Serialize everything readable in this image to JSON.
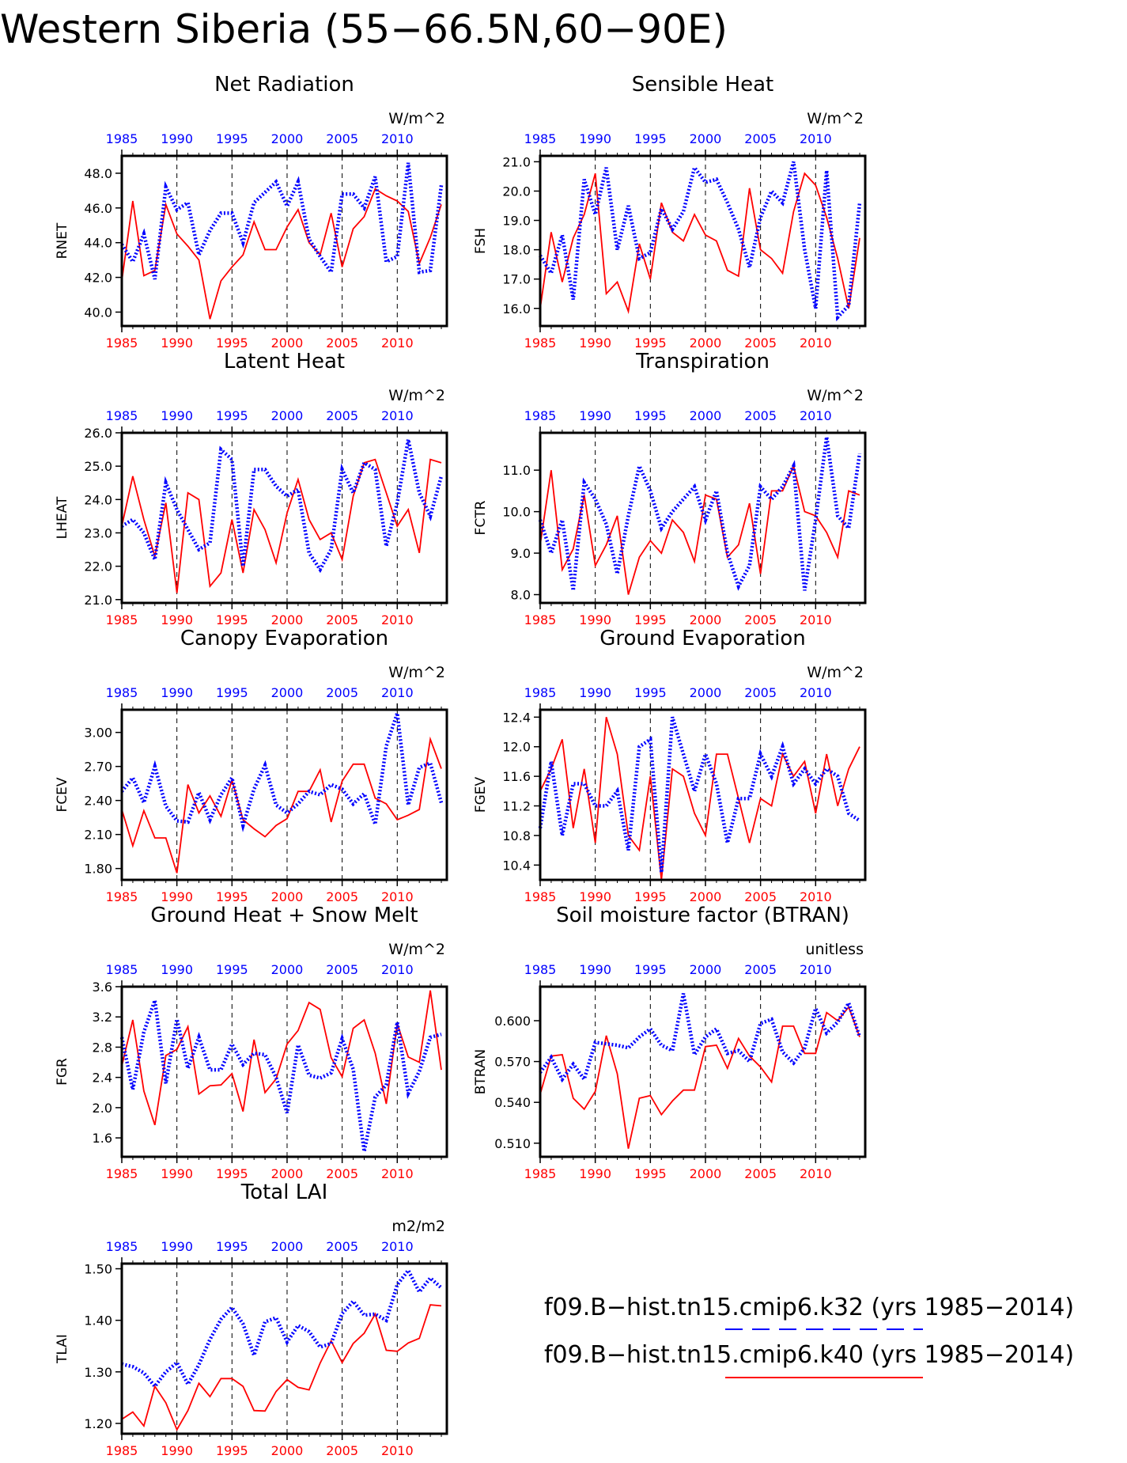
{
  "title": "Western Siberia (55−66.5N,60−90E)",
  "legend": [
    {
      "name": "f09.B−hist.tn15.cmip6.k32 (yrs 1985−2014)",
      "color": "#0000ff",
      "style": "dashed-dotted"
    },
    {
      "name": "f09.B−hist.tn15.cmip6.k40 (yrs 1985−2014)",
      "color": "#ff0000",
      "style": "solid"
    }
  ],
  "colors": {
    "k32": "#0000ff",
    "k40": "#ff0000",
    "grid": "#000000"
  },
  "chart_data": [
    {
      "type": "line",
      "title": "Net Radiation",
      "units": "W/m^2",
      "ylabel": "RNET",
      "x": [
        1985,
        1986,
        1987,
        1988,
        1989,
        1990,
        1991,
        1992,
        1993,
        1994,
        1995,
        1996,
        1997,
        1998,
        1999,
        2000,
        2001,
        2002,
        2003,
        2004,
        2005,
        2006,
        2007,
        2008,
        2009,
        2010,
        2011,
        2012,
        2013,
        2014
      ],
      "xlim": [
        1985,
        2014.5
      ],
      "xticks": [
        1985,
        1990,
        1995,
        2000,
        2005,
        2010
      ],
      "ylim": [
        39.2,
        49.0
      ],
      "yticks": [
        "40.0",
        "42.0",
        "44.0",
        "46.0",
        "48.0"
      ],
      "series": [
        {
          "name": "k32",
          "values": [
            43.9,
            42.9,
            44.5,
            41.9,
            47.2,
            45.9,
            46.3,
            43.3,
            44.7,
            45.7,
            45.7,
            44.0,
            46.3,
            46.9,
            47.5,
            46.1,
            47.5,
            44.2,
            43.2,
            42.3,
            46.8,
            46.8,
            46.0,
            47.8,
            42.9,
            43.2,
            48.6,
            42.3,
            42.4,
            47.3
          ]
        },
        {
          "name": "k40",
          "values": [
            41.8,
            46.4,
            42.1,
            42.4,
            46.2,
            44.5,
            43.8,
            43.0,
            39.6,
            41.8,
            42.6,
            43.3,
            45.2,
            43.6,
            43.6,
            44.9,
            45.9,
            44.0,
            43.3,
            45.7,
            42.6,
            44.8,
            45.5,
            47.1,
            46.7,
            46.4,
            45.8,
            42.8,
            44.3,
            46.2
          ]
        }
      ]
    },
    {
      "type": "line",
      "title": "Sensible Heat",
      "units": "W/m^2",
      "ylabel": "FSH",
      "x": [
        1985,
        1986,
        1987,
        1988,
        1989,
        1990,
        1991,
        1992,
        1993,
        1994,
        1995,
        1996,
        1997,
        1998,
        1999,
        2000,
        2001,
        2002,
        2003,
        2004,
        2005,
        2006,
        2007,
        2008,
        2009,
        2010,
        2011,
        2012,
        2013,
        2014
      ],
      "xlim": [
        1985,
        2014.5
      ],
      "xticks": [
        1985,
        1990,
        1995,
        2000,
        2005,
        2010
      ],
      "ylim": [
        15.4,
        21.2
      ],
      "yticks": [
        "16.0",
        "17.0",
        "18.0",
        "19.0",
        "20.0",
        "21.0"
      ],
      "series": [
        {
          "name": "k32",
          "values": [
            17.8,
            17.2,
            18.5,
            16.3,
            20.4,
            19.2,
            20.8,
            18.0,
            19.5,
            17.7,
            17.9,
            19.4,
            18.7,
            19.3,
            20.8,
            20.3,
            20.4,
            19.6,
            18.7,
            17.4,
            19.1,
            20.0,
            19.6,
            21.0,
            18.0,
            16.0,
            20.7,
            15.7,
            16.1,
            19.6
          ]
        },
        {
          "name": "k40",
          "values": [
            16.0,
            18.6,
            16.9,
            18.4,
            19.2,
            20.6,
            16.5,
            16.9,
            15.9,
            18.2,
            17.0,
            19.6,
            18.6,
            18.3,
            19.2,
            18.5,
            18.3,
            17.3,
            17.1,
            20.1,
            18.0,
            17.7,
            17.2,
            19.3,
            20.6,
            20.2,
            19.1,
            17.7,
            16.0,
            18.4
          ]
        }
      ]
    },
    {
      "type": "line",
      "title": "Latent Heat",
      "units": "W/m^2",
      "ylabel": "LHEAT",
      "x": [
        1985,
        1986,
        1987,
        1988,
        1989,
        1990,
        1991,
        1992,
        1993,
        1994,
        1995,
        1996,
        1997,
        1998,
        1999,
        2000,
        2001,
        2002,
        2003,
        2004,
        2005,
        2006,
        2007,
        2008,
        2009,
        2010,
        2011,
        2012,
        2013,
        2014
      ],
      "xlim": [
        1985,
        2014.5
      ],
      "xticks": [
        1985,
        1990,
        1995,
        2000,
        2005,
        2010
      ],
      "ylim": [
        20.9,
        26.0
      ],
      "yticks": [
        "21.0",
        "22.0",
        "23.0",
        "24.0",
        "25.0",
        "26.0"
      ],
      "series": [
        {
          "name": "k32",
          "values": [
            23.2,
            23.4,
            23.0,
            22.2,
            24.5,
            23.7,
            23.1,
            22.5,
            22.7,
            25.5,
            25.2,
            22.0,
            24.9,
            24.9,
            24.4,
            24.1,
            24.3,
            22.4,
            21.9,
            22.5,
            24.9,
            24.2,
            25.1,
            24.9,
            22.6,
            23.9,
            25.8,
            24.2,
            23.5,
            24.7
          ]
        },
        {
          "name": "k40",
          "values": [
            23.2,
            24.7,
            23.4,
            22.3,
            23.9,
            21.2,
            24.2,
            24.0,
            21.4,
            21.8,
            23.4,
            21.8,
            23.7,
            23.1,
            22.1,
            23.6,
            24.6,
            23.4,
            22.8,
            23.0,
            22.2,
            24.1,
            25.1,
            25.2,
            24.2,
            23.2,
            23.7,
            22.4,
            25.2,
            25.1
          ]
        }
      ]
    },
    {
      "type": "line",
      "title": "Transpiration",
      "units": "W/m^2",
      "ylabel": "FCTR",
      "x": [
        1985,
        1986,
        1987,
        1988,
        1989,
        1990,
        1991,
        1992,
        1993,
        1994,
        1995,
        1996,
        1997,
        1998,
        1999,
        2000,
        2001,
        2002,
        2003,
        2004,
        2005,
        2006,
        2007,
        2008,
        2009,
        2010,
        2011,
        2012,
        2013,
        2014
      ],
      "xlim": [
        1985,
        2014.5
      ],
      "xticks": [
        1985,
        1990,
        1995,
        2000,
        2005,
        2010
      ],
      "ylim": [
        7.8,
        11.9
      ],
      "yticks": [
        "8.0",
        "9.0",
        "10.0",
        "11.0"
      ],
      "series": [
        {
          "name": "k32",
          "values": [
            9.8,
            9.0,
            9.8,
            8.1,
            10.7,
            10.3,
            9.7,
            8.5,
            9.9,
            11.1,
            10.5,
            9.6,
            10.0,
            10.3,
            10.6,
            9.8,
            10.5,
            9.0,
            8.2,
            8.7,
            10.6,
            10.3,
            10.6,
            11.1,
            8.1,
            9.8,
            11.8,
            9.9,
            9.6,
            11.4
          ]
        },
        {
          "name": "k40",
          "values": [
            9.2,
            11.0,
            8.6,
            9.1,
            10.4,
            8.7,
            9.2,
            9.9,
            8.0,
            8.9,
            9.3,
            9.0,
            9.8,
            9.5,
            8.8,
            10.4,
            10.3,
            8.9,
            9.2,
            10.2,
            8.5,
            10.5,
            10.5,
            11.1,
            10.0,
            9.9,
            9.5,
            8.9,
            10.5,
            10.4
          ]
        }
      ]
    },
    {
      "type": "line",
      "title": "Canopy Evaporation",
      "units": "W/m^2",
      "ylabel": "FCEV",
      "x": [
        1985,
        1986,
        1987,
        1988,
        1989,
        1990,
        1991,
        1992,
        1993,
        1994,
        1995,
        1996,
        1997,
        1998,
        1999,
        2000,
        2001,
        2002,
        2003,
        2004,
        2005,
        2006,
        2007,
        2008,
        2009,
        2010,
        2011,
        2012,
        2013,
        2014
      ],
      "xlim": [
        1985,
        2014.5
      ],
      "xticks": [
        1985,
        1990,
        1995,
        2000,
        2005,
        2010
      ],
      "ylim": [
        1.7,
        3.2
      ],
      "yticks": [
        "1.80",
        "2.10",
        "2.40",
        "2.70",
        "3.00"
      ],
      "series": [
        {
          "name": "k32",
          "values": [
            2.48,
            2.6,
            2.38,
            2.7,
            2.35,
            2.22,
            2.21,
            2.47,
            2.23,
            2.45,
            2.6,
            2.18,
            2.5,
            2.71,
            2.36,
            2.29,
            2.37,
            2.48,
            2.45,
            2.54,
            2.5,
            2.37,
            2.46,
            2.19,
            2.88,
            3.17,
            2.36,
            2.69,
            2.73,
            2.38
          ]
        },
        {
          "name": "k40",
          "values": [
            2.32,
            2.0,
            2.31,
            2.07,
            2.07,
            1.76,
            2.54,
            2.29,
            2.44,
            2.26,
            2.58,
            2.23,
            2.15,
            2.08,
            2.18,
            2.24,
            2.48,
            2.48,
            2.67,
            2.21,
            2.57,
            2.72,
            2.72,
            2.42,
            2.37,
            2.23,
            2.27,
            2.32,
            2.94,
            2.68
          ]
        }
      ]
    },
    {
      "type": "line",
      "title": "Ground Evaporation",
      "units": "W/m^2",
      "ylabel": "FGEV",
      "x": [
        1985,
        1986,
        1987,
        1988,
        1989,
        1990,
        1991,
        1992,
        1993,
        1994,
        1995,
        1996,
        1997,
        1998,
        1999,
        2000,
        2001,
        2002,
        2003,
        2004,
        2005,
        2006,
        2007,
        2008,
        2009,
        2010,
        2011,
        2012,
        2013,
        2014
      ],
      "xlim": [
        1985,
        2014.5
      ],
      "xticks": [
        1985,
        1990,
        1995,
        2000,
        2005,
        2010
      ],
      "ylim": [
        10.2,
        12.5
      ],
      "yticks": [
        "10.4",
        "10.8",
        "11.2",
        "11.6",
        "12.0",
        "12.4"
      ],
      "series": [
        {
          "name": "k32",
          "values": [
            10.9,
            11.8,
            10.8,
            11.5,
            11.5,
            11.2,
            11.2,
            11.4,
            10.6,
            12.0,
            12.1,
            10.3,
            12.4,
            11.9,
            11.4,
            11.9,
            11.5,
            10.7,
            11.3,
            11.3,
            11.9,
            11.6,
            12.0,
            11.5,
            11.7,
            11.5,
            11.7,
            11.6,
            11.1,
            11.0
          ]
        },
        {
          "name": "k40",
          "values": [
            11.4,
            11.7,
            12.1,
            10.9,
            11.7,
            10.7,
            12.4,
            11.9,
            10.8,
            10.6,
            11.6,
            10.2,
            11.7,
            11.6,
            11.1,
            10.8,
            11.9,
            11.9,
            11.3,
            10.7,
            11.3,
            11.2,
            11.9,
            11.6,
            11.8,
            11.1,
            11.9,
            11.2,
            11.7,
            12.0
          ]
        }
      ]
    },
    {
      "type": "line",
      "title": "Ground Heat + Snow Melt",
      "units": "W/m^2",
      "ylabel": "FGR",
      "x": [
        1985,
        1986,
        1987,
        1988,
        1989,
        1990,
        1991,
        1992,
        1993,
        1994,
        1995,
        1996,
        1997,
        1998,
        1999,
        2000,
        2001,
        2002,
        2003,
        2004,
        2005,
        2006,
        2007,
        2008,
        2009,
        2010,
        2011,
        2012,
        2013,
        2014
      ],
      "xlim": [
        1985,
        2014.5
      ],
      "xticks": [
        1985,
        1990,
        1995,
        2000,
        2005,
        2010
      ],
      "ylim": [
        1.35,
        3.6
      ],
      "yticks": [
        "1.6",
        "2.0",
        "2.4",
        "2.8",
        "3.2",
        "3.6"
      ],
      "series": [
        {
          "name": "k32",
          "values": [
            2.93,
            2.24,
            3.0,
            3.42,
            2.32,
            3.17,
            2.52,
            2.93,
            2.5,
            2.5,
            2.84,
            2.57,
            2.72,
            2.7,
            2.4,
            1.93,
            2.83,
            2.43,
            2.39,
            2.46,
            2.91,
            2.51,
            1.42,
            2.14,
            2.3,
            3.13,
            2.19,
            2.48,
            2.93,
            2.97
          ]
        },
        {
          "name": "k40",
          "values": [
            2.55,
            3.16,
            2.22,
            1.77,
            2.69,
            2.77,
            3.07,
            2.18,
            2.29,
            2.3,
            2.45,
            1.95,
            2.9,
            2.2,
            2.38,
            2.84,
            3.02,
            3.39,
            3.3,
            2.66,
            2.41,
            3.05,
            3.16,
            2.72,
            2.05,
            3.11,
            2.67,
            2.6,
            3.55,
            2.5
          ]
        }
      ]
    },
    {
      "type": "line",
      "title": "Soil moisture factor (BTRAN)",
      "units": "unitless",
      "ylabel": "BTRAN",
      "x": [
        1985,
        1986,
        1987,
        1988,
        1989,
        1990,
        1991,
        1992,
        1993,
        1994,
        1995,
        1996,
        1997,
        1998,
        1999,
        2000,
        2001,
        2002,
        2003,
        2004,
        2005,
        2006,
        2007,
        2008,
        2009,
        2010,
        2011,
        2012,
        2013,
        2014
      ],
      "xlim": [
        1985,
        2014.5
      ],
      "xticks": [
        1985,
        1990,
        1995,
        2000,
        2005,
        2010
      ],
      "ylim": [
        0.5,
        0.625
      ],
      "yticks": [
        "0.510",
        "0.540",
        "0.570",
        "0.600"
      ],
      "series": [
        {
          "name": "k32",
          "values": [
            0.562,
            0.573,
            0.557,
            0.568,
            0.557,
            0.584,
            0.583,
            0.582,
            0.58,
            0.588,
            0.594,
            0.582,
            0.578,
            0.62,
            0.575,
            0.588,
            0.594,
            0.576,
            0.578,
            0.57,
            0.598,
            0.601,
            0.577,
            0.569,
            0.58,
            0.609,
            0.591,
            0.599,
            0.613,
            0.588
          ]
        },
        {
          "name": "k40",
          "values": [
            0.546,
            0.574,
            0.575,
            0.543,
            0.535,
            0.548,
            0.589,
            0.561,
            0.506,
            0.543,
            0.545,
            0.531,
            0.541,
            0.549,
            0.549,
            0.581,
            0.582,
            0.565,
            0.587,
            0.574,
            0.566,
            0.555,
            0.596,
            0.596,
            0.576,
            0.576,
            0.606,
            0.6,
            0.61,
            0.588
          ]
        }
      ]
    },
    {
      "type": "line",
      "title": "Total LAI",
      "units": "m2/m2",
      "ylabel": "TLAI",
      "x": [
        1985,
        1986,
        1987,
        1988,
        1989,
        1990,
        1991,
        1992,
        1993,
        1994,
        1995,
        1996,
        1997,
        1998,
        1999,
        2000,
        2001,
        2002,
        2003,
        2004,
        2005,
        2006,
        2007,
        2008,
        2009,
        2010,
        2011,
        2012,
        2013,
        2014
      ],
      "xlim": [
        1985,
        2014.5
      ],
      "xticks": [
        1985,
        1990,
        1995,
        2000,
        2005,
        2010
      ],
      "ylim": [
        1.18,
        1.51
      ],
      "yticks": [
        "1.20",
        "1.30",
        "1.40",
        "1.50"
      ],
      "series": [
        {
          "name": "k32",
          "values": [
            1.315,
            1.31,
            1.298,
            1.272,
            1.3,
            1.318,
            1.276,
            1.314,
            1.363,
            1.402,
            1.425,
            1.393,
            1.332,
            1.397,
            1.405,
            1.358,
            1.39,
            1.378,
            1.348,
            1.355,
            1.413,
            1.437,
            1.41,
            1.412,
            1.4,
            1.469,
            1.497,
            1.455,
            1.482,
            1.463
          ]
        },
        {
          "name": "k40",
          "values": [
            1.208,
            1.222,
            1.195,
            1.272,
            1.24,
            1.188,
            1.225,
            1.278,
            1.252,
            1.287,
            1.287,
            1.272,
            1.225,
            1.224,
            1.262,
            1.285,
            1.27,
            1.265,
            1.317,
            1.36,
            1.318,
            1.355,
            1.375,
            1.412,
            1.342,
            1.34,
            1.356,
            1.365,
            1.43,
            1.428
          ]
        }
      ]
    }
  ]
}
